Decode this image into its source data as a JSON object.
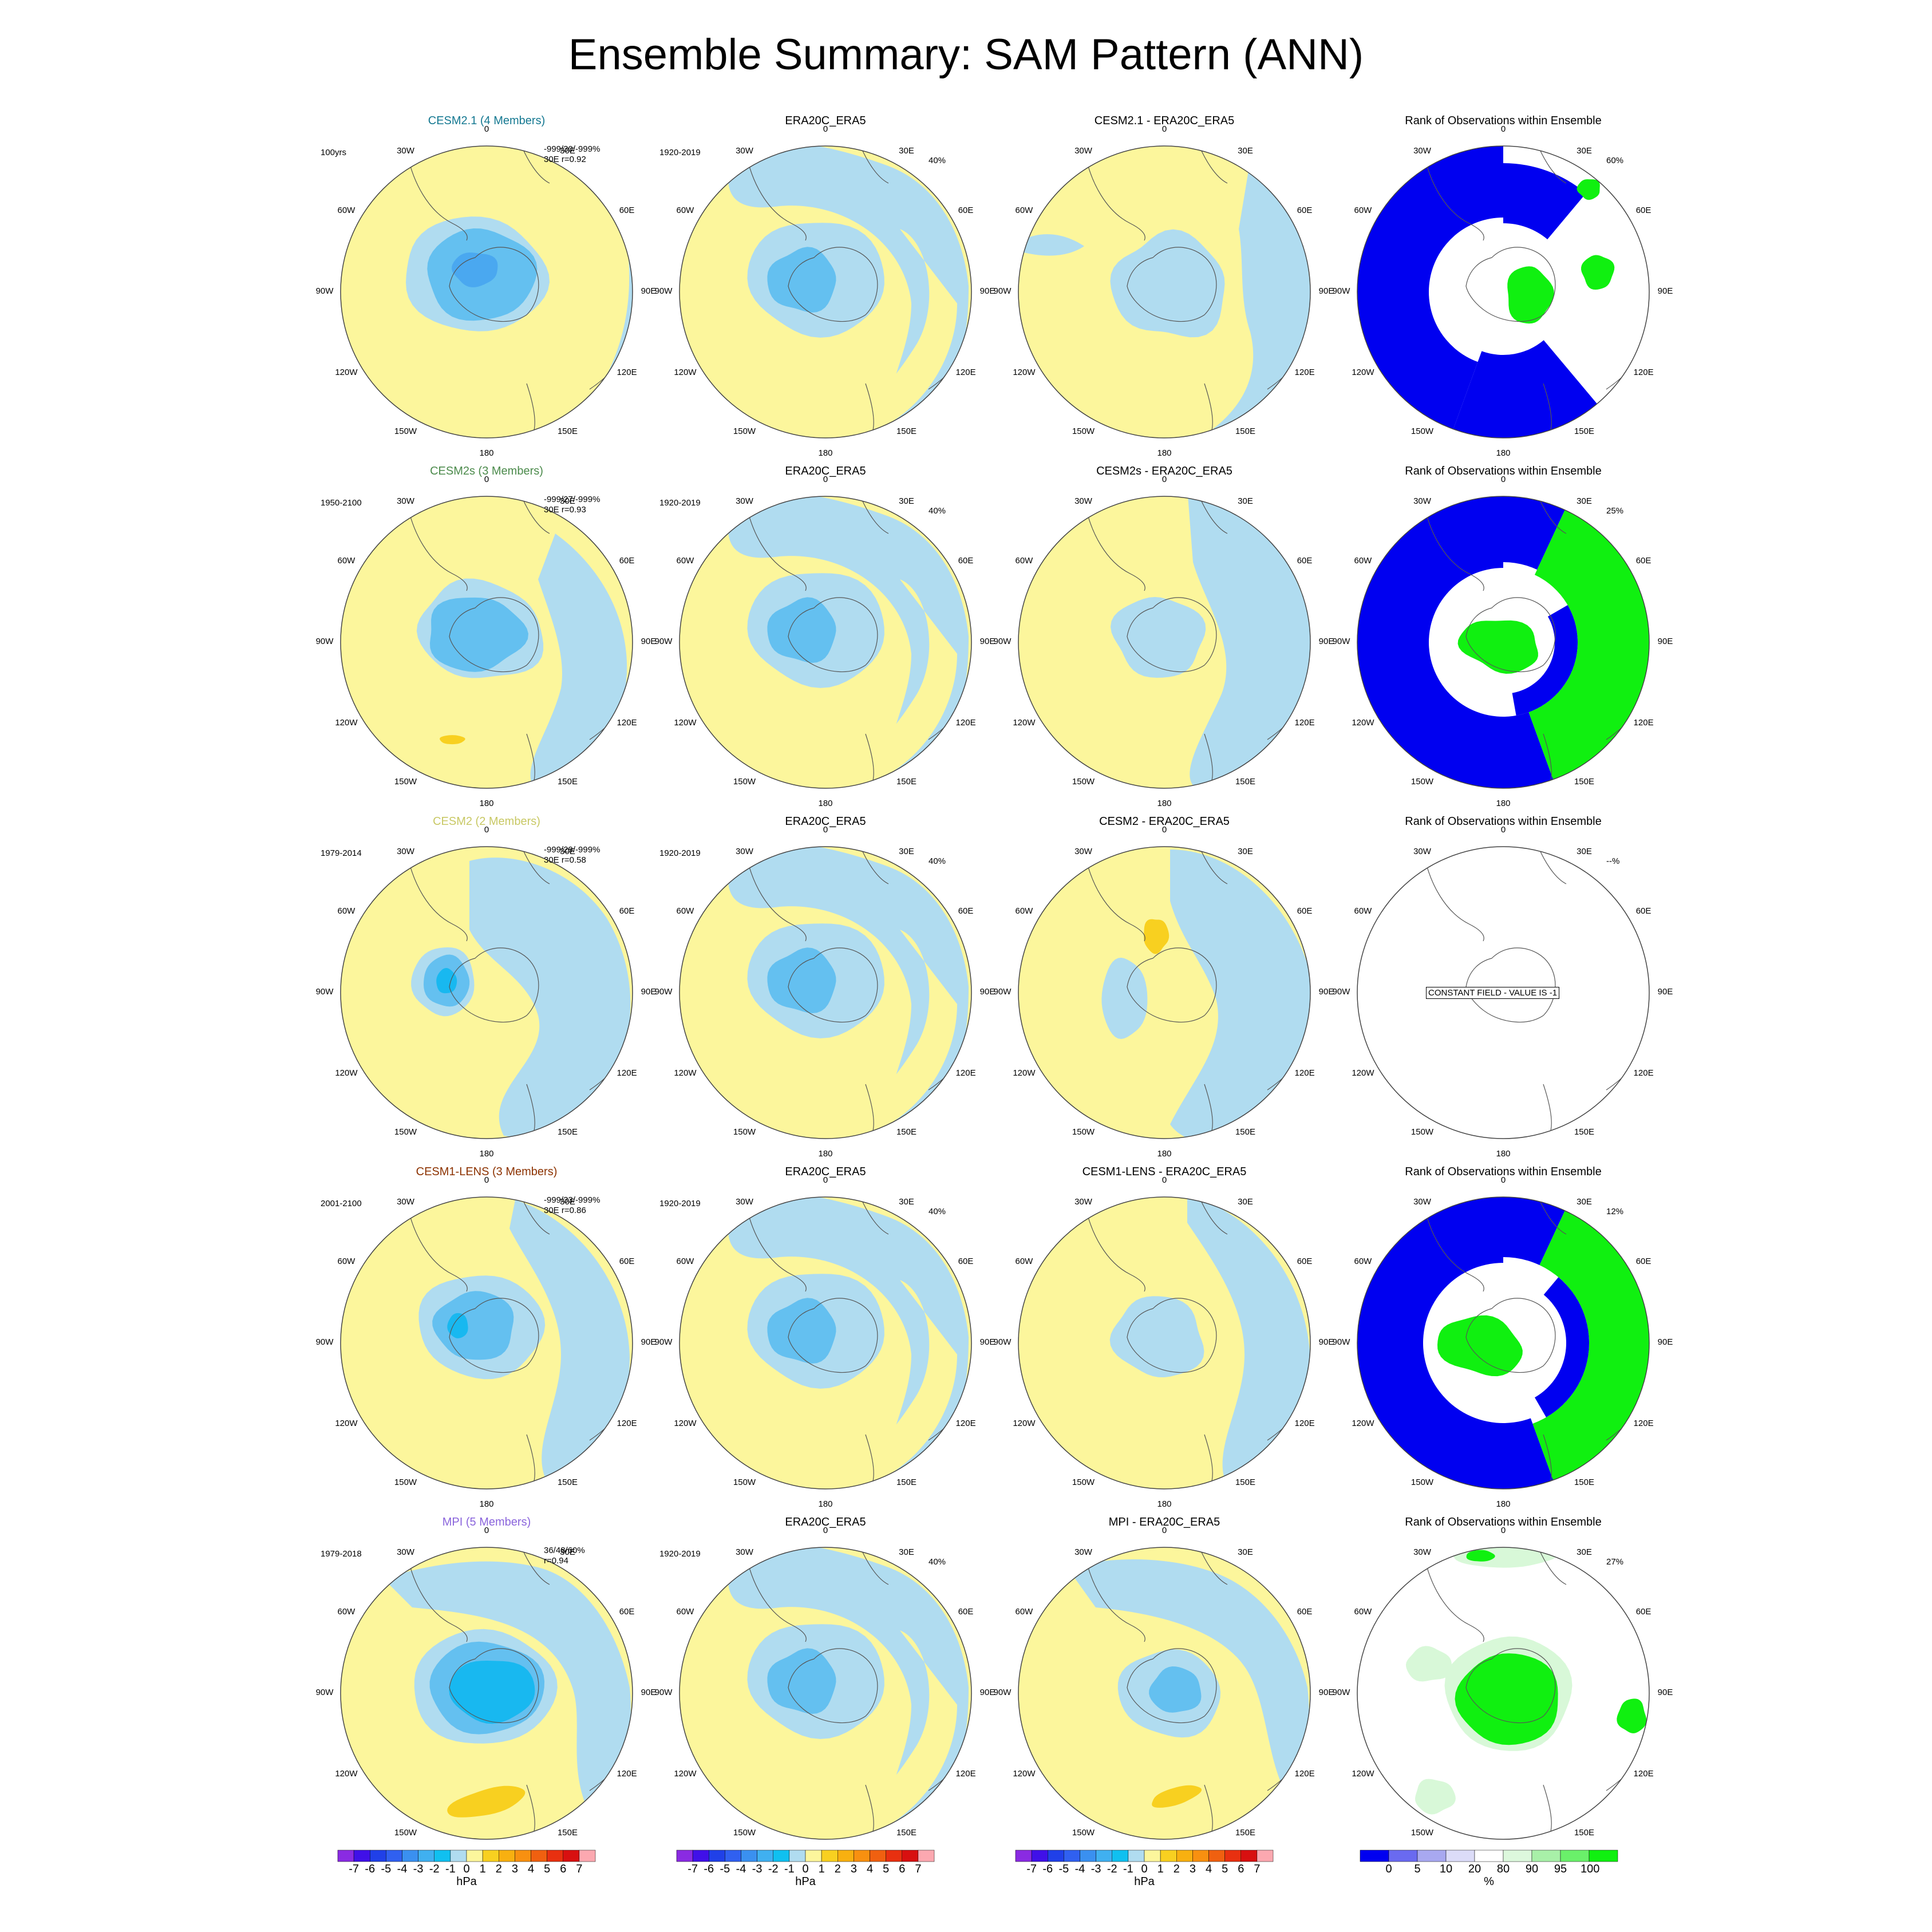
{
  "figure_title": "Ensemble Summary: SAM Pattern (ANN)",
  "colors": {
    "blue3": "#1e48e8",
    "blue2": "#3a7ae8",
    "blue1": "#4aa8f0",
    "cyan": "#18b8f0",
    "medblue": "#64c0f0",
    "lightblue": "#b0dcf0",
    "yellow": "#fcf69c",
    "gold": "#f8d020",
    "orange": "#f6a820",
    "rank_blue": "#0000f0",
    "rank_green": "#10f010",
    "rank_palegreen": "#d8f8d8",
    "title_cesm21": "#147891",
    "title_cesm2s": "#4b8a4b",
    "title_cesm2": "#c8c864",
    "title_lens": "#8c3200",
    "title_mpi": "#8a64dc"
  },
  "lon_labels": [
    "0",
    "30E",
    "60E",
    "90E",
    "120E",
    "150E",
    "180",
    "150W",
    "120W",
    "90W",
    "60W",
    "30W"
  ],
  "rows": [
    {
      "model": {
        "title": "CESM2.1 (4 Members)",
        "period": "100yrs",
        "stats": "-999/30/-999%",
        "corr": "30E r=0.92",
        "pattern": "cesm21"
      },
      "obs": {
        "title": "ERA20C_ERA5",
        "period": "1920-2019",
        "pct": "40%"
      },
      "diff": {
        "title": "CESM2.1 - ERA20C_ERA5",
        "pattern": "diff_cesm21"
      },
      "rank": {
        "title": "Rank of Observations within Ensemble",
        "pct": "60%",
        "pattern": "rank1"
      }
    },
    {
      "model": {
        "title": "CESM2s (3 Members)",
        "period": "1950-2100",
        "stats": "-999/27/-999%",
        "corr": "30E r=0.93",
        "pattern": "cesm2s"
      },
      "obs": {
        "title": "ERA20C_ERA5",
        "period": "1920-2019",
        "pct": "40%"
      },
      "diff": {
        "title": "CESM2s - ERA20C_ERA5",
        "pattern": "diff_cesm2s"
      },
      "rank": {
        "title": "Rank of Observations within Ensemble",
        "pct": "25%",
        "pattern": "rank2"
      }
    },
    {
      "model": {
        "title": "CESM2 (2 Members)",
        "period": "1979-2014",
        "stats": "-999/29/-999%",
        "corr": "30E r=0.58",
        "pattern": "cesm2"
      },
      "obs": {
        "title": "ERA20C_ERA5",
        "period": "1920-2019",
        "pct": "40%"
      },
      "diff": {
        "title": "CESM2 - ERA20C_ERA5",
        "pattern": "diff_cesm2"
      },
      "rank": {
        "title": "Rank of Observations within Ensemble",
        "pct": "--%",
        "pattern": "rank3",
        "note": "CONSTANT FIELD - VALUE IS -1"
      }
    },
    {
      "model": {
        "title": "CESM1-LENS (3 Members)",
        "period": "2001-2100",
        "stats": "-999/33/-999%",
        "corr": "30E r=0.86",
        "pattern": "lens"
      },
      "obs": {
        "title": "ERA20C_ERA5",
        "period": "1920-2019",
        "pct": "40%"
      },
      "diff": {
        "title": "CESM1-LENS - ERA20C_ERA5",
        "pattern": "diff_lens"
      },
      "rank": {
        "title": "Rank of Observations within Ensemble",
        "pct": "12%",
        "pattern": "rank4"
      }
    },
    {
      "model": {
        "title": "MPI (5 Members)",
        "period": "1979-2018",
        "stats": "36/48/60%",
        "corr": "r=0.94",
        "pattern": "mpi"
      },
      "obs": {
        "title": "ERA20C_ERA5",
        "period": "1920-2019",
        "pct": "40%"
      },
      "diff": {
        "title": "MPI - ERA20C_ERA5",
        "pattern": "diff_mpi"
      },
      "rank": {
        "title": "Rank of Observations within Ensemble",
        "pct": "27%",
        "pattern": "rank5"
      }
    }
  ],
  "colorbars": {
    "hpa": {
      "labels": [
        "-7",
        "-6",
        "-5",
        "-4",
        "-3",
        "-2",
        "-1",
        "0",
        "1",
        "2",
        "3",
        "4",
        "5",
        "6",
        "7"
      ],
      "colors": [
        "#8a2be2",
        "#4010e8",
        "#2040e8",
        "#3060f0",
        "#3a90f0",
        "#40b0f0",
        "#10c0f0",
        "#b0dcf0",
        "#fcf69c",
        "#f8d020",
        "#f8b010",
        "#f89010",
        "#f06010",
        "#e83010",
        "#d81010",
        "#fca8b0"
      ],
      "unit": "hPa"
    },
    "rank": {
      "labels": [
        "0",
        "5",
        "10",
        "20",
        "80",
        "90",
        "95",
        "100"
      ],
      "colors": [
        "#0000f0",
        "#6a6af0",
        "#a8a8f0",
        "#dcdcf8",
        "#ffffff",
        "#ddf8dd",
        "#a8f0a8",
        "#6af06a",
        "#10f010"
      ],
      "unit": "%"
    }
  }
}
